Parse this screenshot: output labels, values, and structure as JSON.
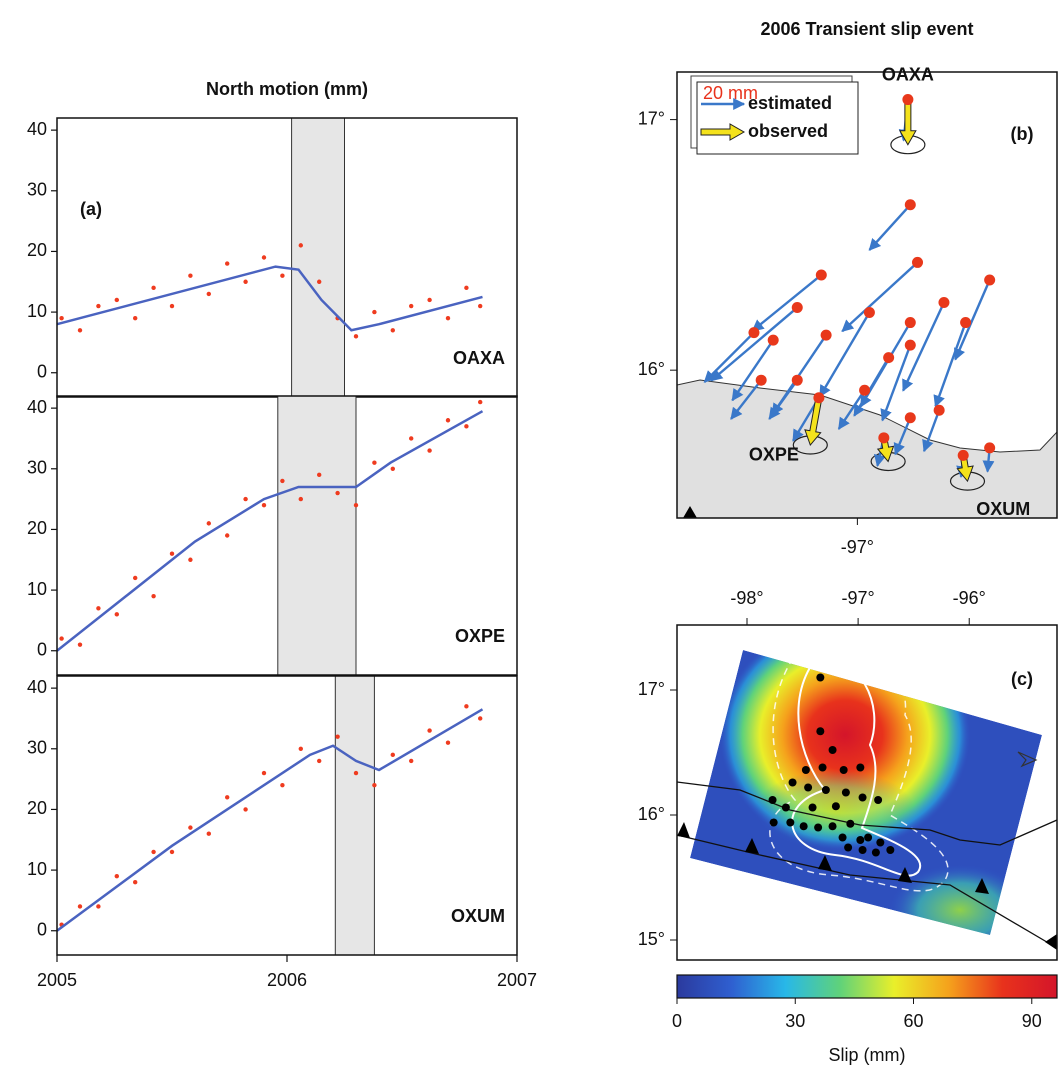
{
  "chart_data": [
    {
      "type": "timeseries",
      "title": "North motion (mm)",
      "panel_label": "(a)",
      "xlim": [
        2005,
        2007
      ],
      "xticks": [
        2005,
        2006,
        2007
      ],
      "ylim": [
        -4,
        42
      ],
      "yticks": [
        0,
        10,
        20,
        30,
        40
      ],
      "point_color": "#ef3b1f",
      "line_color": "#4a63c0",
      "shade_color": "#e6e6e6",
      "panels": [
        {
          "name": "OAXA",
          "shaded": [
            2006.02,
            2006.25
          ],
          "x": [
            2005.02,
            2005.1,
            2005.18,
            2005.26,
            2005.34,
            2005.42,
            2005.5,
            2005.58,
            2005.66,
            2005.74,
            2005.82,
            2005.9,
            2005.98,
            2006.06,
            2006.14,
            2006.22,
            2006.3,
            2006.38,
            2006.46,
            2006.54,
            2006.62,
            2006.7,
            2006.78,
            2006.84
          ],
          "values": [
            9,
            7,
            11,
            12,
            9,
            14,
            11,
            16,
            13,
            18,
            15,
            19,
            16,
            21,
            15,
            9,
            6,
            10,
            7,
            11,
            12,
            9,
            14,
            11
          ],
          "line_x": [
            2005,
            2005.95,
            2006.05,
            2006.15,
            2006.28,
            2006.4,
            2006.85
          ],
          "line_values": [
            8,
            17.5,
            17,
            12,
            7,
            8,
            12.5
          ]
        },
        {
          "name": "OXPE",
          "shaded": [
            2005.96,
            2006.3
          ],
          "x": [
            2005.02,
            2005.1,
            2005.18,
            2005.26,
            2005.34,
            2005.42,
            2005.5,
            2005.58,
            2005.66,
            2005.74,
            2005.82,
            2005.9,
            2005.98,
            2006.06,
            2006.14,
            2006.22,
            2006.3,
            2006.38,
            2006.46,
            2006.54,
            2006.62,
            2006.7,
            2006.78,
            2006.84
          ],
          "values": [
            2,
            1,
            7,
            6,
            12,
            9,
            16,
            15,
            21,
            19,
            25,
            24,
            28,
            25,
            29,
            26,
            24,
            31,
            30,
            35,
            33,
            38,
            37,
            41
          ],
          "line_x": [
            2005,
            2005.3,
            2005.6,
            2005.9,
            2006.05,
            2006.3,
            2006.45,
            2006.85
          ],
          "line_values": [
            0,
            9,
            18,
            25,
            27,
            27,
            31,
            39.5
          ]
        },
        {
          "name": "OXUM",
          "shaded": [
            2006.21,
            2006.38
          ],
          "x": [
            2005.02,
            2005.1,
            2005.18,
            2005.26,
            2005.34,
            2005.42,
            2005.5,
            2005.58,
            2005.66,
            2005.74,
            2005.82,
            2005.9,
            2005.98,
            2006.06,
            2006.14,
            2006.22,
            2006.3,
            2006.38,
            2006.46,
            2006.54,
            2006.62,
            2006.7,
            2006.78,
            2006.84
          ],
          "values": [
            1,
            4,
            4,
            9,
            8,
            13,
            13,
            17,
            16,
            22,
            20,
            26,
            24,
            30,
            28,
            32,
            26,
            24,
            29,
            28,
            33,
            31,
            37,
            35
          ],
          "line_x": [
            2005,
            2005.5,
            2006.1,
            2006.2,
            2006.3,
            2006.4,
            2006.85
          ],
          "line_values": [
            0,
            14,
            29,
            30.5,
            28,
            26.5,
            36.5
          ]
        }
      ]
    },
    {
      "type": "vector",
      "title": "2006 Transient slip event",
      "panel_label": "(b)",
      "xlim": [
        -97.75,
        -96.17
      ],
      "ylim": [
        15.41,
        17.19
      ],
      "xticks": [
        {
          "value": -97,
          "label": "-97°"
        }
      ],
      "yticks": [
        {
          "value": 16,
          "label": "16°"
        },
        {
          "value": 17,
          "label": "17°"
        }
      ],
      "legend_scale": {
        "value": 20,
        "label": "20 mm"
      },
      "site_color": "#e8381b",
      "series": [
        {
          "name": "estimated",
          "color": "#3a78c9",
          "x": [
            -96.78,
            -97.15,
            -96.75,
            -97.25,
            -96.95,
            -96.64,
            -96.45,
            -97.43,
            -97.35,
            -97.13,
            -96.78,
            -96.55,
            -97.4,
            -97.25,
            -97.16,
            -96.87,
            -96.78,
            -96.97,
            -96.78,
            -96.66,
            -96.89,
            -96.45,
            -96.56,
            -96.79
          ],
          "y": [
            16.66,
            16.38,
            16.43,
            16.25,
            16.23,
            16.27,
            16.36,
            16.15,
            16.12,
            16.14,
            16.19,
            16.19,
            15.96,
            15.96,
            15.89,
            16.05,
            16.1,
            15.92,
            15.81,
            15.84,
            15.73,
            15.69,
            15.66,
            17.08
          ],
          "east": [
            -19,
            -32,
            -35,
            -40,
            -23,
            -19,
            -16,
            -23,
            -19,
            -25,
            -23,
            -14,
            -14,
            -13,
            -12,
            -16,
            -13,
            -12,
            -7,
            -7,
            -3,
            -1,
            -1,
            -2
          ],
          "north": [
            -21,
            -26,
            -32,
            -34,
            -39,
            -41,
            -37,
            -23,
            -28,
            -37,
            -39,
            -39,
            -18,
            -18,
            -20,
            -27,
            -35,
            -18,
            -17,
            -19,
            -13,
            -11,
            -10,
            -19
          ]
        },
        {
          "name": "observed",
          "color": "#f4e21c",
          "x": [
            -96.79,
            -97.16,
            -96.89,
            -96.56
          ],
          "y": [
            17.08,
            15.89,
            15.73,
            15.66
          ],
          "east": [
            0,
            -4,
            2,
            2
          ],
          "north": [
            -21,
            -22,
            -11,
            -12
          ]
        }
      ],
      "stations": [
        {
          "name": "OAXA",
          "x": -96.79,
          "y": 17.08
        },
        {
          "name": "OXPE",
          "x": -97.16,
          "y": 15.89
        },
        {
          "name": "OXUM",
          "x": -96.56,
          "y": 15.66
        }
      ]
    },
    {
      "type": "slip-map",
      "panel_label": "(c)",
      "xlim": [
        -98.63,
        -95.21
      ],
      "ylim": [
        14.84,
        17.52
      ],
      "xticks": [
        {
          "value": -98,
          "label": "-98°"
        },
        {
          "value": -97,
          "label": "-97°"
        },
        {
          "value": -96,
          "label": "-96°"
        }
      ],
      "yticks": [
        {
          "value": 15,
          "label": "15°"
        },
        {
          "value": 16,
          "label": "16°"
        },
        {
          "value": 17,
          "label": "17°"
        }
      ],
      "sites": {
        "x": [
          -97.34,
          -97.34,
          -97.23,
          -97.47,
          -97.32,
          -97.13,
          -96.98,
          -97.59,
          -97.45,
          -97.29,
          -97.11,
          -96.96,
          -96.82,
          -97.77,
          -97.65,
          -97.41,
          -97.2,
          -97.76,
          -97.61,
          -97.49,
          -97.36,
          -97.23,
          -97.07,
          -97.14,
          -96.98,
          -96.91,
          -96.8,
          -96.71,
          -96.84,
          -96.96,
          -97.09
        ],
        "y": [
          17.1,
          16.67,
          16.52,
          16.36,
          16.38,
          16.36,
          16.38,
          16.26,
          16.22,
          16.2,
          16.18,
          16.14,
          16.12,
          16.12,
          16.06,
          16.06,
          16.07,
          15.94,
          15.94,
          15.91,
          15.9,
          15.91,
          15.93,
          15.82,
          15.8,
          15.82,
          15.78,
          15.72,
          15.7,
          15.72,
          15.74
        ]
      },
      "colorbar": {
        "label": "Slip (mm)",
        "clim": [
          0,
          96.4
        ],
        "ticks": [
          0,
          30,
          60,
          90
        ],
        "colors": [
          "#2b3a9e",
          "#2f5fd0",
          "#28b8e8",
          "#5fd27a",
          "#e9ef2a",
          "#f5a21c",
          "#e8321c",
          "#d4152a"
        ]
      }
    }
  ]
}
